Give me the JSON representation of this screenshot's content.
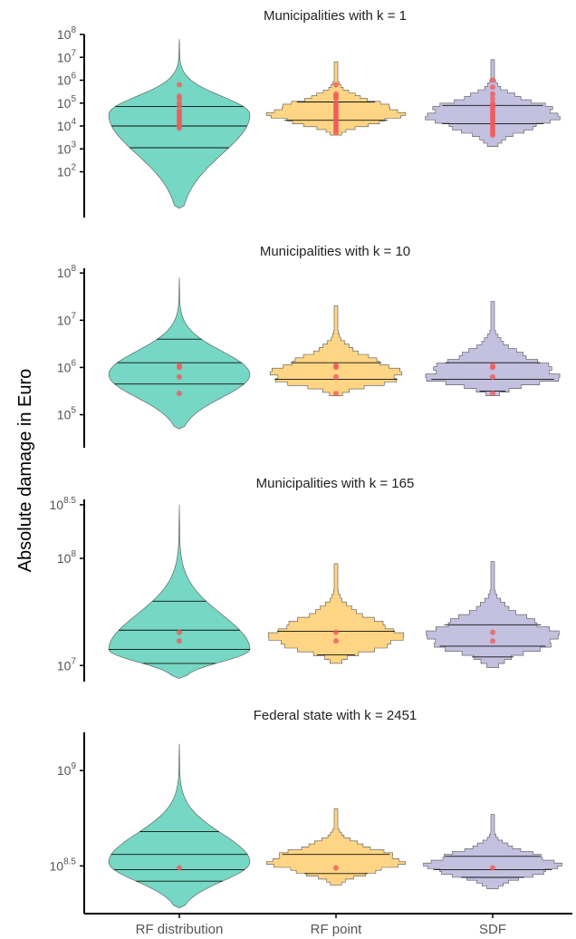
{
  "y_axis_title": "Absolute damage in Euro",
  "colors": {
    "RF distribution": "#76d7c4",
    "RF point": "#fed584",
    "SDF": "#c3c0e0",
    "points": "#f05a5a",
    "outline": "#555555"
  },
  "chart_data": [
    {
      "type": "violin",
      "title": "Municipalities with k = 1",
      "y_scale": "log10",
      "ylim_log10": [
        0.0,
        8.0
      ],
      "ytick_labels": [
        {
          "exp": "8",
          "log10": 8
        },
        {
          "exp": "7",
          "log10": 7
        },
        {
          "exp": "6",
          "log10": 6
        },
        {
          "exp": "5",
          "log10": 5
        },
        {
          "exp": "4",
          "log10": 4
        },
        {
          "exp": "3",
          "log10": 3
        },
        {
          "exp": "2",
          "log10": 2
        }
      ],
      "categories": [
        "RF distribution",
        "RF point",
        "SDF"
      ],
      "series": [
        {
          "category": "RF distribution",
          "kind": "smooth",
          "range_log10": [
            0.4,
            7.8
          ],
          "quantile_lines_log10": [
            3.05,
            4.0,
            4.85
          ],
          "mode_log10": 4.5,
          "points_log10": [
            5.8,
            5.3,
            5.2,
            5.0,
            4.9,
            4.7,
            4.6,
            4.5,
            4.4,
            4.3,
            4.2,
            4.1,
            4.0,
            3.9
          ]
        },
        {
          "category": "RF point",
          "kind": "step",
          "range_log10": [
            3.6,
            6.8
          ],
          "quantile_lines_log10": [
            4.25,
            5.05
          ],
          "mode_log10": 4.5,
          "points_log10": [
            5.8,
            5.4,
            5.3,
            5.2,
            5.0,
            4.9,
            4.8,
            4.7,
            4.6,
            4.5,
            4.4,
            4.3,
            4.2,
            4.1,
            4.0,
            3.9,
            3.8,
            3.7
          ]
        },
        {
          "category": "SDF",
          "kind": "step",
          "range_log10": [
            3.1,
            6.9
          ],
          "quantile_lines_log10": [
            4.1,
            4.9
          ],
          "mode_log10": 4.5,
          "points_log10": [
            6.0,
            5.7,
            5.4,
            5.2,
            5.0,
            4.9,
            4.8,
            4.7,
            4.6,
            4.5,
            4.4,
            4.3,
            4.2,
            4.1,
            4.0,
            3.9,
            3.8,
            3.7,
            3.6
          ]
        }
      ]
    },
    {
      "type": "violin",
      "title": "Municipalities with k = 10",
      "y_scale": "log10",
      "ylim_log10": [
        4.3,
        8.1
      ],
      "ytick_labels": [
        {
          "exp": "8",
          "log10": 8
        },
        {
          "exp": "7",
          "log10": 7
        },
        {
          "exp": "6",
          "log10": 6
        },
        {
          "exp": "5",
          "log10": 5
        }
      ],
      "categories": [
        "RF distribution",
        "RF point",
        "SDF"
      ],
      "series": [
        {
          "category": "RF distribution",
          "kind": "smooth",
          "range_log10": [
            4.7,
            7.9
          ],
          "quantile_lines_log10": [
            5.65,
            6.1,
            6.6
          ],
          "mode_log10": 5.85,
          "points_log10": [
            6.04,
            6.0,
            5.8,
            5.45
          ]
        },
        {
          "category": "RF point",
          "kind": "step",
          "range_log10": [
            5.4,
            7.3
          ],
          "quantile_lines_log10": [
            5.75,
            6.1
          ],
          "mode_log10": 5.8,
          "points_log10": [
            6.04,
            6.0,
            5.8,
            5.45
          ]
        },
        {
          "category": "SDF",
          "kind": "step",
          "range_log10": [
            5.4,
            7.4
          ],
          "quantile_lines_log10": [
            5.5,
            5.75,
            6.1
          ],
          "mode_log10": 5.8,
          "points_log10": [
            6.04,
            6.0,
            5.8,
            5.45
          ]
        }
      ]
    },
    {
      "type": "violin",
      "title": "Municipalities with k = 165",
      "y_scale": "log10",
      "ylim_log10": [
        6.85,
        8.55
      ],
      "ytick_labels": [
        {
          "exp": "8.5",
          "log10": 8.5
        },
        {
          "exp": "8",
          "log10": 8
        },
        {
          "exp": "7",
          "log10": 7
        }
      ],
      "categories": [
        "RF distribution",
        "RF point",
        "SDF"
      ],
      "series": [
        {
          "category": "RF distribution",
          "kind": "smooth",
          "range_log10": [
            6.88,
            8.5
          ],
          "quantile_lines_log10": [
            7.02,
            7.15,
            7.33,
            7.6
          ],
          "mode_log10": 7.15,
          "points_log10": [
            7.31,
            7.23
          ]
        },
        {
          "category": "RF point",
          "kind": "step",
          "range_log10": [
            7.02,
            7.95
          ],
          "quantile_lines_log10": [
            7.1,
            7.32
          ],
          "mode_log10": 7.25,
          "points_log10": [
            7.31,
            7.23
          ]
        },
        {
          "category": "SDF",
          "kind": "step",
          "range_log10": [
            6.98,
            7.97
          ],
          "quantile_lines_log10": [
            7.08,
            7.18,
            7.38
          ],
          "mode_log10": 7.25,
          "points_log10": [
            7.31,
            7.23
          ]
        }
      ]
    },
    {
      "type": "violin",
      "title": "Federal state with k = 2451",
      "y_scale": "log10",
      "ylim_log10": [
        8.25,
        9.2
      ],
      "ytick_labels": [
        {
          "exp": "9",
          "log10": 9
        },
        {
          "exp": "8.5",
          "log10": 8.5
        }
      ],
      "categories": [
        "RF distribution",
        "RF point",
        "SDF"
      ],
      "series": [
        {
          "category": "RF distribution",
          "kind": "smooth",
          "range_log10": [
            8.28,
            9.14
          ],
          "quantile_lines_log10": [
            8.42,
            8.48,
            8.56,
            8.68
          ],
          "mode_log10": 8.52,
          "points_log10": [
            8.49
          ]
        },
        {
          "category": "RF point",
          "kind": "step",
          "range_log10": [
            8.4,
            8.8
          ],
          "quantile_lines_log10": [
            8.46,
            8.56
          ],
          "mode_log10": 8.52,
          "points_log10": [
            8.49
          ]
        },
        {
          "category": "SDF",
          "kind": "step",
          "range_log10": [
            8.38,
            8.77
          ],
          "quantile_lines_log10": [
            8.44,
            8.48,
            8.55
          ],
          "mode_log10": 8.5,
          "points_log10": [
            8.49
          ]
        }
      ]
    }
  ]
}
